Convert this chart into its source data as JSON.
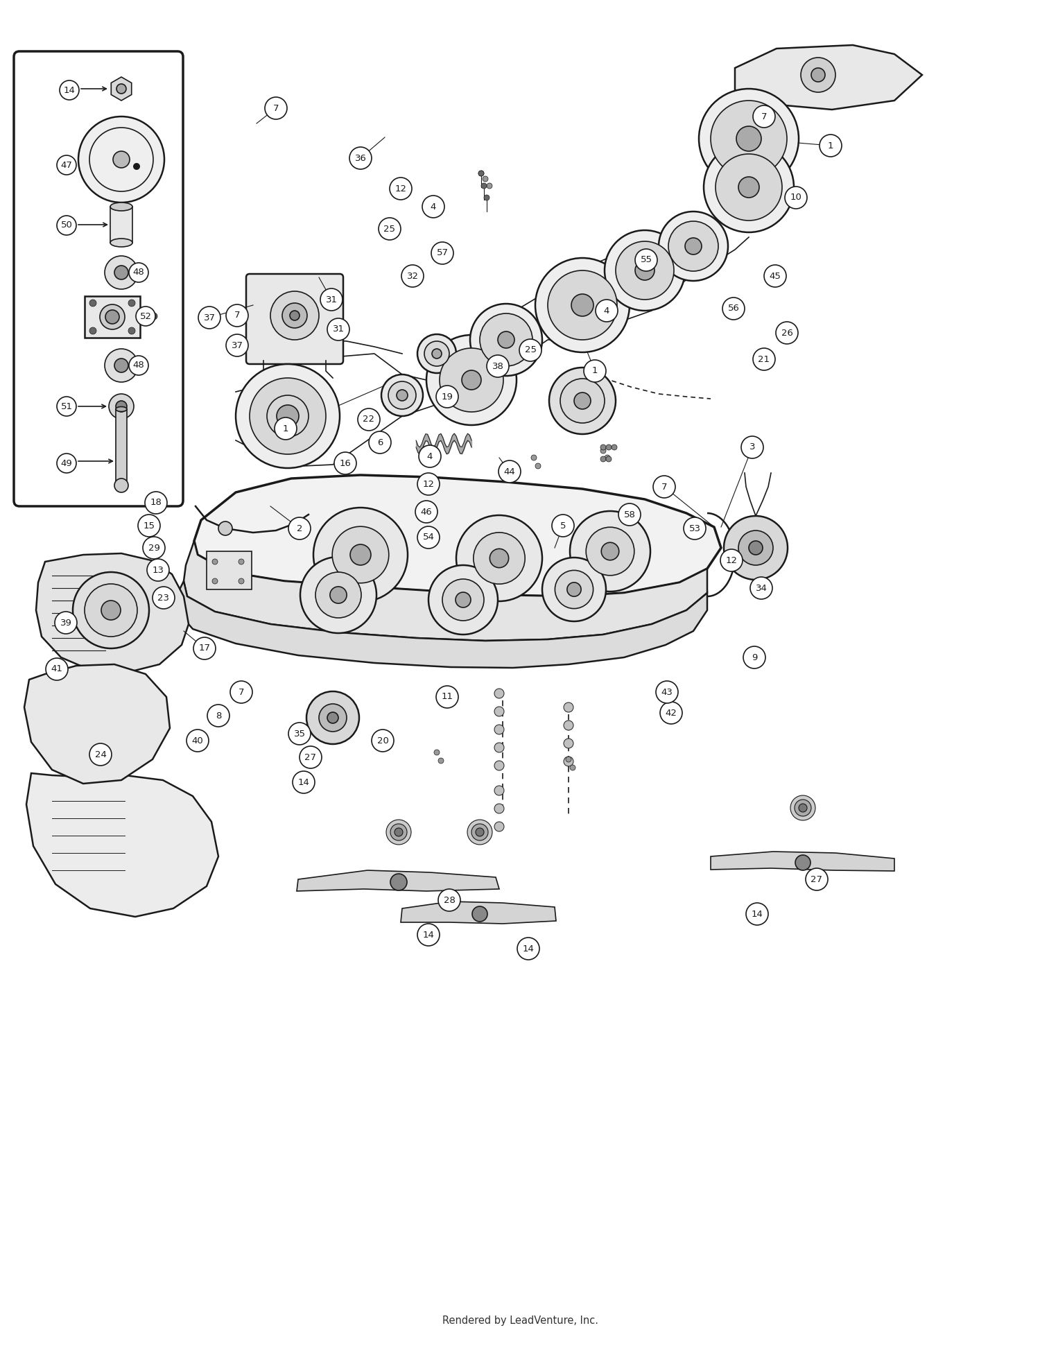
{
  "footer": "Rendered by LeadVenture, Inc.",
  "background_color": "#ffffff",
  "fig_width": 15.0,
  "fig_height": 19.41,
  "footer_fontsize": 10.5,
  "diagram_scale": 1.0
}
